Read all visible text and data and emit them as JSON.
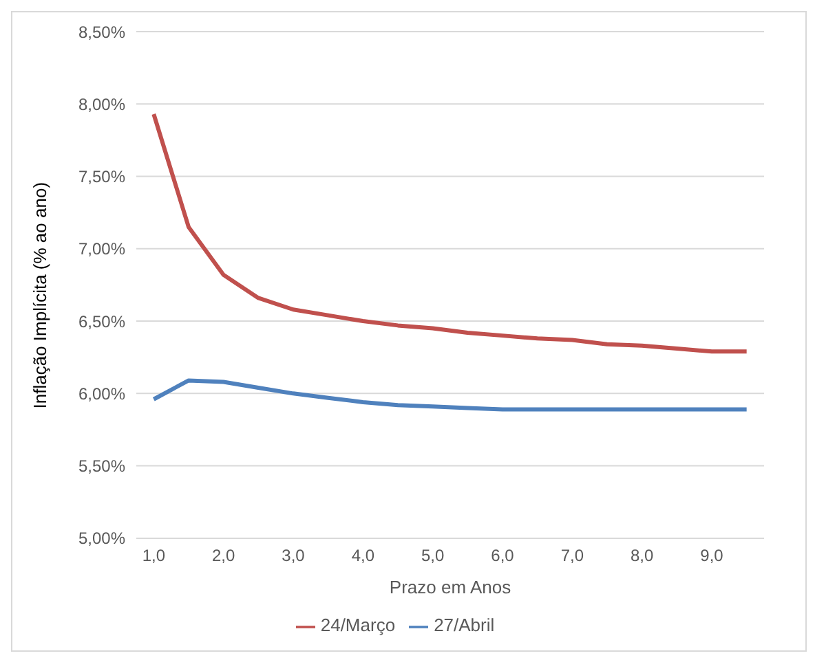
{
  "chart_data": {
    "type": "line",
    "xlabel": "Prazo em Anos",
    "ylabel": "Inflação Implícita (% ao ano)",
    "x": [
      1,
      1.5,
      2,
      2.5,
      3,
      3.5,
      4,
      4.5,
      5,
      5.5,
      6,
      6.5,
      7,
      7.5,
      8,
      8.5,
      9,
      9.5
    ],
    "series": [
      {
        "name": "24/Março",
        "color": "#c0504d",
        "values": [
          7.93,
          7.15,
          6.82,
          6.66,
          6.58,
          6.54,
          6.5,
          6.47,
          6.45,
          6.42,
          6.4,
          6.38,
          6.37,
          6.34,
          6.33,
          6.31,
          6.29,
          6.29
        ]
      },
      {
        "name": "27/Abril",
        "color": "#4f81bd",
        "values": [
          5.96,
          6.09,
          6.08,
          6.04,
          6.0,
          5.97,
          5.94,
          5.92,
          5.91,
          5.9,
          5.89,
          5.89,
          5.89,
          5.89,
          5.89,
          5.89,
          5.89,
          5.89
        ]
      }
    ],
    "xlim": [
      0.75,
      9.75
    ],
    "xticks": [
      {
        "value": 1,
        "label": "1,0"
      },
      {
        "value": 2,
        "label": "2,0"
      },
      {
        "value": 3,
        "label": "3,0"
      },
      {
        "value": 4,
        "label": "4,0"
      },
      {
        "value": 5,
        "label": "5,0"
      },
      {
        "value": 6,
        "label": "6,0"
      },
      {
        "value": 7,
        "label": "7,0"
      },
      {
        "value": 8,
        "label": "8,0"
      },
      {
        "value": 9,
        "label": "9,0"
      }
    ],
    "ylim": [
      5,
      8.5
    ],
    "yticks": [
      {
        "value": 5,
        "label": "5,00%"
      },
      {
        "value": 5.5,
        "label": "5,50%"
      },
      {
        "value": 6,
        "label": "6,00%"
      },
      {
        "value": 6.5,
        "label": "6,50%"
      },
      {
        "value": 7,
        "label": "7,00%"
      },
      {
        "value": 7.5,
        "label": "7,50%"
      },
      {
        "value": 8,
        "label": "8,00%"
      },
      {
        "value": 8.5,
        "label": "8,50%"
      }
    ],
    "grid": "y",
    "legend": "bottom",
    "marker": "none",
    "line_style": "solid"
  }
}
